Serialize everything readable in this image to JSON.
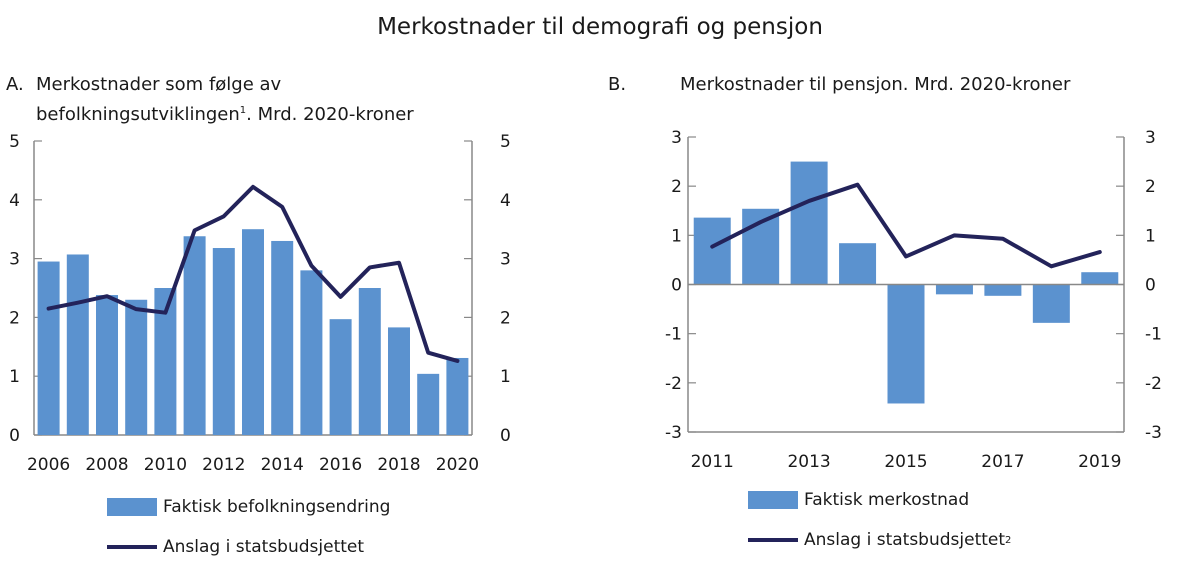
{
  "title": "Merkostnader til demografi og pensjon",
  "colors": {
    "bar": "#5b92cf",
    "line": "#23235a",
    "axis": "#888888"
  },
  "chart_data": [
    {
      "type": "bar",
      "panel": "A.",
      "title": "Merkostnader som følge av befolkningsutviklingen",
      "title_sup": "1",
      "title_suffix": ". Mrd. 2020-kroner",
      "categories": [
        "2006",
        "2007",
        "2008",
        "2009",
        "2010",
        "2011",
        "2012",
        "2013",
        "2014",
        "2015",
        "2016",
        "2017",
        "2018",
        "2019",
        "2020"
      ],
      "xtick_labels": [
        "2006",
        "2008",
        "2010",
        "2012",
        "2014",
        "2016",
        "2018",
        "2020"
      ],
      "ylim": [
        0,
        5
      ],
      "yticks": [
        "0",
        "1",
        "2",
        "3",
        "4",
        "5"
      ],
      "grid": false,
      "legend_placement": "bottom",
      "series": [
        {
          "name": "Faktisk befolkningsendring",
          "type": "bar",
          "values": [
            2.95,
            3.07,
            2.38,
            2.3,
            2.5,
            3.38,
            3.18,
            3.5,
            3.3,
            2.8,
            1.97,
            2.5,
            1.83,
            1.04,
            1.31
          ]
        },
        {
          "name": "Anslag i statsbudsjettet",
          "type": "line",
          "values": [
            2.15,
            2.25,
            2.36,
            2.14,
            2.08,
            3.48,
            3.72,
            4.22,
            3.88,
            2.88,
            2.35,
            2.85,
            2.93,
            1.4,
            1.26
          ]
        }
      ]
    },
    {
      "type": "bar",
      "panel": "B.",
      "title": "Merkostnader til pensjon. Mrd. 2020-kroner",
      "categories": [
        "2011",
        "2012",
        "2013",
        "2014",
        "2015",
        "2016",
        "2017",
        "2018",
        "2019"
      ],
      "xtick_labels": [
        "2011",
        "2013",
        "2015",
        "2017",
        "2019"
      ],
      "ylim": [
        -3,
        3
      ],
      "yticks": [
        "-3",
        "-2",
        "-1",
        "0",
        "1",
        "2",
        "3"
      ],
      "grid": false,
      "legend_placement": "bottom",
      "series": [
        {
          "name": "Faktisk merkostnad",
          "type": "bar",
          "values": [
            1.36,
            1.54,
            2.5,
            0.84,
            -2.42,
            -0.2,
            -0.23,
            -0.78,
            0.25
          ]
        },
        {
          "name": "Anslag i statsbudsjettet",
          "name_sup": "2",
          "type": "line",
          "values": [
            0.77,
            1.27,
            1.7,
            2.03,
            0.57,
            1.0,
            0.93,
            0.37,
            0.66
          ]
        }
      ]
    }
  ]
}
